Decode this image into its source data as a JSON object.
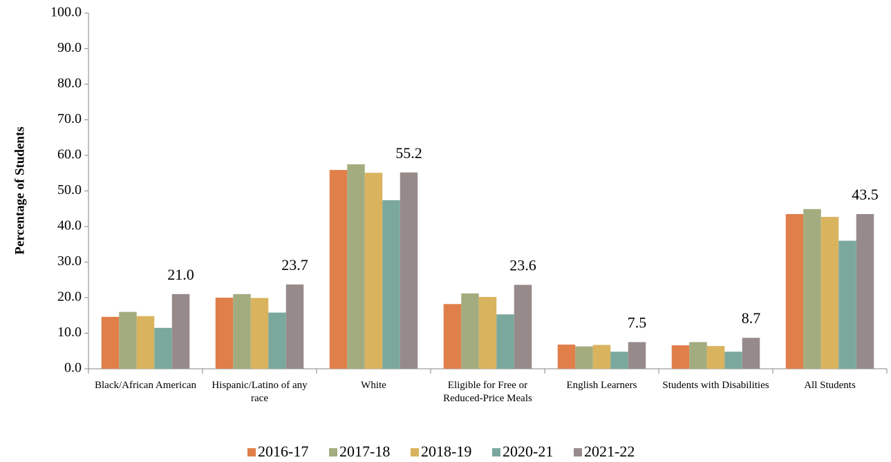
{
  "chart_data": {
    "type": "bar",
    "y_label": "Percentage of Students",
    "categories": [
      "Black/African American",
      "Hispanic/Latino of any race",
      "White",
      "Eligible for Free or Reduced-Price Meals",
      "English Learners",
      "Students with Disabilities",
      "All Students"
    ],
    "series": [
      {
        "name": "2016-17",
        "color": "#e07f4a",
        "values": [
          14.6,
          20.0,
          55.9,
          18.2,
          6.8,
          6.6,
          43.5
        ]
      },
      {
        "name": "2017-18",
        "color": "#a3ac7f",
        "values": [
          16.0,
          21.0,
          57.5,
          21.2,
          6.3,
          7.5,
          44.9
        ]
      },
      {
        "name": "2018-19",
        "color": "#d9b35e",
        "values": [
          14.8,
          19.9,
          55.1,
          20.2,
          6.7,
          6.4,
          42.7
        ]
      },
      {
        "name": "2020-21",
        "color": "#7ba89d",
        "values": [
          11.5,
          15.8,
          47.4,
          15.3,
          4.8,
          4.8,
          36.0
        ]
      },
      {
        "name": "2021-22",
        "color": "#968a8a",
        "values": [
          21.0,
          23.7,
          55.2,
          23.6,
          7.5,
          8.7,
          43.5
        ],
        "value_labels": [
          "21.0",
          "23.7",
          "55.2",
          "23.6",
          "7.5",
          "8.7",
          "43.5"
        ]
      }
    ],
    "ylim": [
      0,
      100
    ],
    "yticks": [
      {
        "value": 0,
        "label": "0.0"
      },
      {
        "value": 10,
        "label": "10.0"
      },
      {
        "value": 20,
        "label": "20.0"
      },
      {
        "value": 30,
        "label": "30.0"
      },
      {
        "value": 40,
        "label": "40.0"
      },
      {
        "value": 50,
        "label": "50.0"
      },
      {
        "value": 60,
        "label": "60.0"
      },
      {
        "value": 70,
        "label": "70.0"
      },
      {
        "value": 80,
        "label": "80.0"
      },
      {
        "value": 90,
        "label": "90.0"
      },
      {
        "value": 100,
        "label": "100.0"
      }
    ],
    "grid": false,
    "legend": "bottom"
  }
}
